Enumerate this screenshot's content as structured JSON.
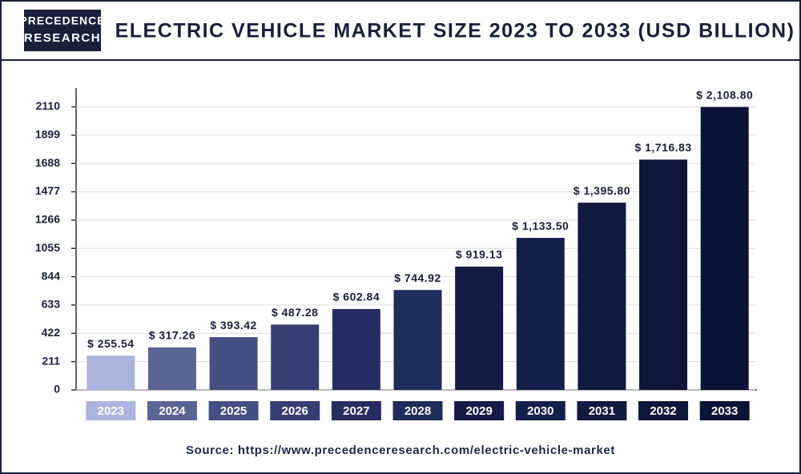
{
  "logo": {
    "line1": "PRECEDENCE",
    "line2": "RESEARCH"
  },
  "chart_data": {
    "type": "bar",
    "title": "ELECTRIC VEHICLE MARKET SIZE 2023 TO 2033 (USD BILLION)",
    "categories": [
      "2023",
      "2024",
      "2025",
      "2026",
      "2027",
      "2028",
      "2029",
      "2030",
      "2031",
      "2032",
      "2033"
    ],
    "values": [
      255.54,
      317.26,
      393.42,
      487.28,
      602.84,
      744.92,
      919.13,
      1133.5,
      1395.8,
      1716.83,
      2108.8
    ],
    "value_labels": [
      "$ 255.54",
      "$ 317.26",
      "$ 393.42",
      "$ 487.28",
      "$ 602.84",
      "$ 744.92",
      "$ 919.13",
      "$ 1,133.50",
      "$ 1,395.80",
      "$ 1,716.83",
      "$ 2,108.80"
    ],
    "colors": [
      "#aab4dc",
      "#5b6594",
      "#464f84",
      "#363e73",
      "#272d60",
      "#1e2d59",
      "#141c46",
      "#15204a",
      "#111a3f",
      "#0e1739",
      "#0b1336"
    ],
    "ylim": [
      0,
      2250
    ],
    "yticks": [
      0,
      211,
      422,
      633,
      844,
      1055,
      1266,
      1477,
      1688,
      1899,
      2110
    ],
    "grid": true,
    "source": "Source: https://www.precedenceresearch.com/electric-vehicle-market"
  }
}
